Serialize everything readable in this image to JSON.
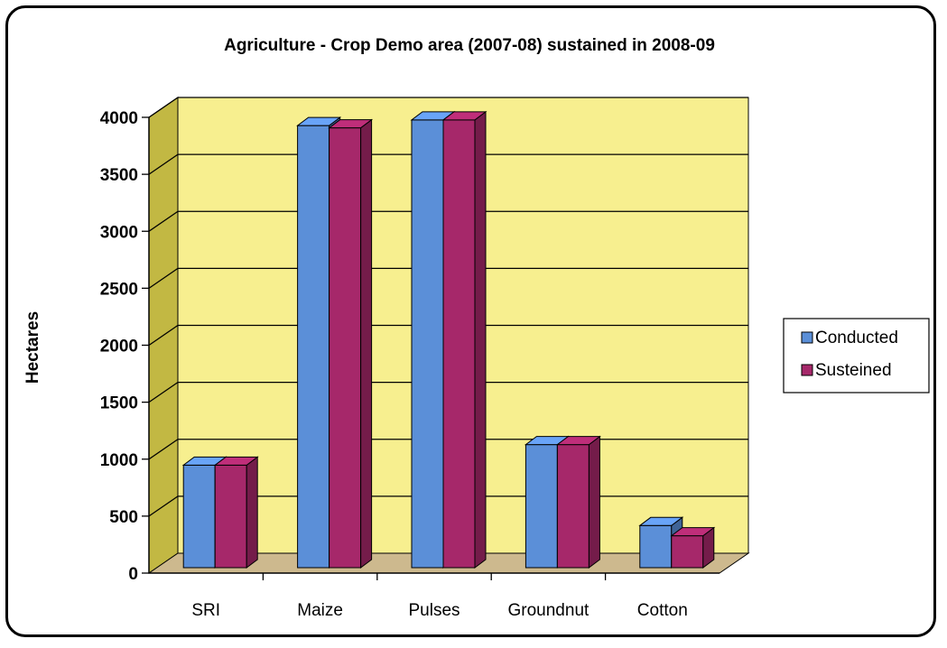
{
  "chart_data": {
    "type": "bar",
    "title": "Agriculture - Crop Demo area (2007-08) sustained in 2008-09",
    "xlabel": "",
    "ylabel": "Hectares",
    "categories": [
      "SRI",
      "Maize",
      "Pulses",
      "Groundnut",
      "Cotton"
    ],
    "series": [
      {
        "name": "Conducted",
        "values": [
          900,
          3880,
          3930,
          1080,
          370
        ],
        "color": "#5b8fd8"
      },
      {
        "name": "Susteined",
        "values": [
          900,
          3860,
          3930,
          1080,
          280
        ],
        "color": "#a6286a"
      }
    ],
    "ylim": [
      0,
      4000
    ],
    "yticks": [
      "0",
      "500",
      "1000",
      "1500",
      "2000",
      "2500",
      "3000",
      "3500",
      "4000"
    ],
    "grid": true,
    "legend_position": "right",
    "wall_color": "#f7ef8f",
    "side_wall_color": "#c2b843",
    "floor_color": "#cdb98e"
  }
}
